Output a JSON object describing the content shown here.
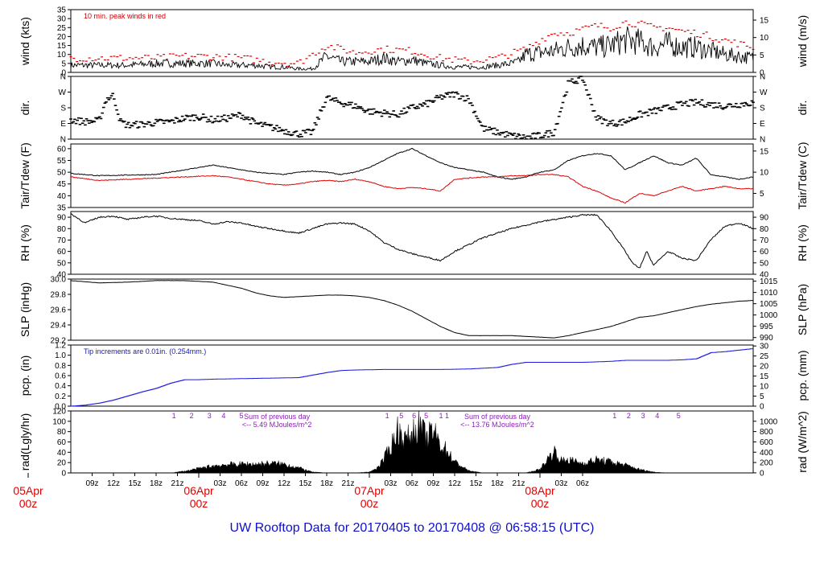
{
  "title": "UW Rooftop Data for 20170405  to  20170408 @ 06:58:15  (UTC)",
  "chart_data": [
    {
      "type": "line",
      "name": "wind",
      "ylabel_left": "wind (kts)",
      "ylabel_right": "wind (m/s)",
      "ylim": [
        0,
        35
      ],
      "yticks": [
        0,
        5,
        10,
        15,
        20,
        25,
        30,
        35
      ],
      "ylim_right": [
        0,
        18.0
      ],
      "yticks_right": [
        0,
        5,
        10,
        15
      ],
      "annotation": "10 min. peak winds in red",
      "series": [
        {
          "name": "wind speed",
          "color": "#000000",
          "x": [
            0,
            4,
            8,
            12,
            16,
            20,
            22,
            23,
            24,
            26,
            28,
            30,
            32,
            34,
            36,
            38,
            40,
            42,
            44,
            46,
            48,
            50,
            52,
            54,
            56,
            58,
            60,
            62,
            63,
            64,
            66,
            68,
            70,
            72,
            74,
            76,
            78,
            80,
            82,
            84,
            86,
            88,
            90,
            92,
            94,
            96
          ],
          "values": [
            4,
            4,
            4,
            5,
            5,
            5,
            4,
            4,
            4,
            4,
            3,
            3,
            2,
            2,
            9,
            6,
            6,
            6,
            8,
            6,
            7,
            5,
            4,
            3,
            3,
            3,
            4,
            5,
            6,
            10,
            11,
            12,
            14,
            15,
            14,
            15,
            18,
            17,
            14,
            16,
            14,
            14,
            12,
            10,
            9,
            8
          ]
        },
        {
          "name": "10 min peak",
          "color": "#e00000",
          "x": [
            0,
            4,
            8,
            12,
            16,
            20,
            24,
            28,
            32,
            36,
            40,
            44,
            48,
            52,
            56,
            60,
            64,
            66,
            68,
            70,
            72,
            74,
            76,
            78,
            80,
            82,
            84,
            86,
            88,
            90,
            92,
            94,
            96
          ],
          "values": [
            8,
            8,
            8,
            8,
            9,
            9,
            8,
            6,
            5,
            15,
            11,
            13,
            12,
            8,
            6,
            8,
            13,
            18,
            22,
            22,
            24,
            26,
            25,
            28,
            27,
            25,
            25,
            23,
            22,
            20,
            18,
            16,
            14
          ]
        }
      ]
    },
    {
      "type": "scatter",
      "name": "dir",
      "ylabel_left": "dir.",
      "ylabel_right": "dir.",
      "ylim": [
        0,
        360
      ],
      "tick_labels": [
        "N",
        "E",
        "S",
        "W",
        "N"
      ],
      "tick_values": [
        0,
        90,
        180,
        270,
        360
      ],
      "series": [
        {
          "name": "wind direction",
          "color": "#000000",
          "x": [
            0,
            2,
            4,
            5,
            6,
            7,
            8,
            10,
            12,
            14,
            16,
            18,
            20,
            22,
            24,
            26,
            28,
            30,
            32,
            34,
            36,
            37,
            38,
            40,
            42,
            44,
            46,
            48,
            50,
            52,
            54,
            56,
            58,
            60,
            62,
            64,
            66,
            68,
            70,
            72,
            74,
            76,
            78,
            80,
            82,
            84,
            86,
            88,
            90,
            92,
            94,
            96
          ],
          "values": [
            110,
            100,
            105,
            230,
            250,
            100,
            80,
            85,
            95,
            100,
            120,
            130,
            110,
            120,
            140,
            90,
            70,
            50,
            30,
            40,
            240,
            220,
            210,
            190,
            160,
            150,
            140,
            180,
            200,
            240,
            260,
            230,
            60,
            40,
            20,
            10,
            20,
            40,
            320,
            350,
            120,
            90,
            100,
            140,
            160,
            180,
            200,
            210,
            200,
            190,
            200,
            210
          ]
        }
      ]
    },
    {
      "type": "line",
      "name": "temperature",
      "ylabel_left": "Tair/Tdew (F)",
      "ylabel_right": "Tair/Tdew (C)",
      "ylim": [
        35,
        62
      ],
      "yticks": [
        35,
        40,
        45,
        50,
        55,
        60
      ],
      "yticks_right": [
        5,
        10,
        15
      ],
      "series": [
        {
          "name": "Tair",
          "color": "#000000",
          "x": [
            0,
            4,
            8,
            12,
            16,
            20,
            22,
            24,
            26,
            28,
            30,
            32,
            34,
            36,
            38,
            40,
            42,
            44,
            46,
            48,
            50,
            52,
            54,
            56,
            58,
            60,
            62,
            64,
            66,
            68,
            70,
            72,
            74,
            76,
            78,
            80,
            82,
            84,
            86,
            88,
            90,
            92,
            94,
            96
          ],
          "values": [
            49.5,
            48.5,
            48.8,
            49,
            51,
            53,
            52,
            51,
            50,
            49.5,
            49,
            50,
            50.5,
            50,
            49,
            50,
            52,
            55,
            58,
            60,
            57,
            54,
            52,
            51,
            50,
            48,
            47,
            48,
            50,
            51,
            55,
            57,
            58,
            57,
            51,
            54,
            57,
            54,
            53,
            56,
            49,
            48,
            47,
            48
          ]
        },
        {
          "name": "Tdew",
          "color": "#e00000",
          "x": [
            0,
            4,
            8,
            12,
            16,
            20,
            22,
            24,
            26,
            28,
            30,
            32,
            34,
            36,
            38,
            40,
            42,
            44,
            46,
            48,
            50,
            52,
            54,
            56,
            58,
            60,
            62,
            64,
            66,
            68,
            70,
            72,
            74,
            76,
            78,
            80,
            82,
            84,
            86,
            88,
            90,
            92,
            94,
            96
          ],
          "values": [
            48,
            46.5,
            47,
            47.5,
            48,
            48.5,
            48,
            47,
            46,
            45,
            44.5,
            45,
            46,
            46.5,
            46,
            47,
            46,
            44,
            43,
            43.5,
            43,
            42,
            47,
            47.5,
            48,
            48,
            48.5,
            48.5,
            49,
            49,
            48,
            44,
            42,
            39,
            37,
            41,
            40,
            42,
            44,
            42,
            43,
            44,
            43,
            43
          ]
        }
      ]
    },
    {
      "type": "line",
      "name": "rh",
      "ylabel_left": "RH (%)",
      "ylabel_right": "RH (%)",
      "ylim": [
        40,
        95
      ],
      "yticks": [
        40,
        50,
        60,
        70,
        80,
        90
      ],
      "series": [
        {
          "name": "RH",
          "color": "#000000",
          "x": [
            0,
            2,
            4,
            6,
            8,
            10,
            12,
            14,
            16,
            18,
            20,
            22,
            24,
            26,
            28,
            30,
            32,
            34,
            36,
            38,
            40,
            42,
            44,
            46,
            48,
            50,
            52,
            54,
            56,
            58,
            60,
            62,
            64,
            66,
            68,
            70,
            72,
            74,
            76,
            78,
            79,
            80,
            81,
            82,
            84,
            86,
            88,
            90,
            92,
            94,
            96
          ],
          "values": [
            93,
            85,
            90,
            91,
            88,
            90,
            91,
            89,
            88,
            87,
            84,
            86,
            85,
            82,
            80,
            78,
            76,
            80,
            84,
            85,
            84,
            78,
            68,
            62,
            58,
            55,
            52,
            60,
            66,
            72,
            76,
            80,
            83,
            86,
            88,
            90,
            92,
            92,
            78,
            60,
            50,
            45,
            60,
            48,
            60,
            54,
            52,
            70,
            82,
            85,
            80
          ]
        }
      ]
    },
    {
      "type": "line",
      "name": "slp",
      "ylabel_left": "SLP (inHg)",
      "ylabel_right": "SLP (hPa)",
      "ylim": [
        29.2,
        30.0
      ],
      "yticks": [
        29.2,
        29.4,
        29.6,
        29.8,
        30.0
      ],
      "ytick_labels": [
        "29.2",
        "29.4",
        "29.6",
        "29.8",
        "30.0"
      ],
      "yticks_right": [
        990,
        995,
        1000,
        1005,
        1010,
        1015
      ],
      "series": [
        {
          "name": "SLP",
          "color": "#000000",
          "x": [
            0,
            4,
            8,
            12,
            16,
            20,
            24,
            26,
            28,
            30,
            32,
            34,
            36,
            38,
            40,
            42,
            44,
            46,
            48,
            50,
            52,
            54,
            56,
            58,
            60,
            62,
            64,
            66,
            68,
            70,
            72,
            74,
            76,
            78,
            80,
            82,
            84,
            86,
            88,
            90,
            92,
            94,
            96
          ],
          "values": [
            29.98,
            29.95,
            29.96,
            29.98,
            29.98,
            29.96,
            29.88,
            29.82,
            29.78,
            29.76,
            29.77,
            29.78,
            29.79,
            29.79,
            29.78,
            29.76,
            29.72,
            29.66,
            29.58,
            29.48,
            29.38,
            29.3,
            29.26,
            29.26,
            29.26,
            29.26,
            29.25,
            29.24,
            29.23,
            29.26,
            29.3,
            29.34,
            29.38,
            29.44,
            29.5,
            29.52,
            29.56,
            29.6,
            29.64,
            29.67,
            29.69,
            29.71,
            29.72
          ]
        }
      ]
    },
    {
      "type": "area",
      "name": "precip",
      "ylabel_left": "pcp. (in)",
      "ylabel_right": "pcp. (mm)",
      "ylim": [
        0.0,
        1.2
      ],
      "yticks": [
        0.0,
        0.2,
        0.4,
        0.6,
        0.8,
        1.0,
        1.2
      ],
      "ytick_labels": [
        "0.0",
        "0.2",
        "0.4",
        "0.6",
        "0.8",
        "1.0",
        "1.2"
      ],
      "yticks_right": [
        0,
        5,
        10,
        15,
        20,
        25,
        30
      ],
      "annotation": "Tip increments are 0.01in. (0.254mm.)",
      "series": [
        {
          "name": "cumulative precip",
          "color": "#1a1ae0",
          "x": [
            0,
            2,
            4,
            6,
            8,
            10,
            12,
            14,
            16,
            18,
            20,
            24,
            28,
            32,
            36,
            38,
            40,
            44,
            48,
            52,
            56,
            60,
            62,
            64,
            66,
            68,
            70,
            72,
            74,
            76,
            78,
            80,
            82,
            84,
            86,
            88,
            90,
            92,
            94,
            96
          ],
          "values": [
            0.0,
            0.02,
            0.06,
            0.12,
            0.2,
            0.28,
            0.35,
            0.45,
            0.52,
            0.52,
            0.53,
            0.54,
            0.55,
            0.56,
            0.66,
            0.7,
            0.71,
            0.72,
            0.72,
            0.72,
            0.73,
            0.76,
            0.82,
            0.86,
            0.86,
            0.86,
            0.86,
            0.86,
            0.87,
            0.88,
            0.9,
            0.9,
            0.9,
            0.9,
            0.91,
            0.93,
            1.05,
            1.07,
            1.1,
            1.13
          ]
        }
      ]
    },
    {
      "type": "area",
      "name": "radiation",
      "ylabel_left": "rad(Lgly/hr)",
      "ylabel_right": "rad (W/m^2)",
      "ylim": [
        0,
        120
      ],
      "yticks": [
        0,
        20,
        40,
        60,
        80,
        100,
        120
      ],
      "yticks_right": [
        0,
        200,
        400,
        600,
        800,
        1000
      ],
      "series": [
        {
          "name": "solar radiation",
          "color": "#000000",
          "x": [
            0,
            14,
            16,
            18,
            20,
            22,
            24,
            26,
            28,
            30,
            32,
            34,
            36,
            38,
            40,
            42,
            43,
            44,
            45,
            46,
            47,
            48,
            49,
            50,
            51,
            52,
            53,
            54,
            56,
            58,
            60,
            62,
            64,
            66,
            67,
            68,
            69,
            70,
            72,
            74,
            76,
            78,
            80,
            82,
            84,
            86,
            96
          ],
          "values": [
            0,
            0,
            4,
            10,
            16,
            19,
            20,
            20,
            22,
            20,
            12,
            2,
            0,
            0,
            0,
            2,
            10,
            30,
            60,
            100,
            75,
            90,
            110,
            80,
            95,
            65,
            50,
            25,
            5,
            0,
            0,
            0,
            0,
            8,
            30,
            50,
            28,
            30,
            22,
            30,
            25,
            18,
            8,
            2,
            0,
            0,
            0
          ]
        }
      ],
      "markers": [
        "1",
        "2",
        "3",
        "4",
        "5",
        "1",
        "5",
        "6",
        "5",
        "1 1",
        "1",
        "2",
        "3",
        "4",
        "5"
      ],
      "notes": [
        {
          "line1": "Sum of previous day",
          "line2": "<-- 5.49 MJoules/m^2"
        },
        {
          "line1": "Sum of previous day",
          "line2": "<-- 13.76 MJoules/m^2"
        }
      ]
    }
  ],
  "x_axis": {
    "range_hours": [
      0,
      96
    ],
    "hour_ticks": [
      "09z",
      "12z",
      "15z",
      "18z",
      "21z",
      "03z",
      "06z",
      "09z",
      "12z",
      "15z",
      "18z",
      "21z",
      "03z",
      "06z",
      "09z",
      "12z",
      "15z",
      "18z",
      "21z",
      "03z",
      "06z"
    ],
    "hour_tick_values": [
      2,
      5,
      8,
      11,
      14,
      20,
      23,
      26,
      29,
      32,
      35,
      38,
      44,
      47,
      50,
      53,
      56,
      59,
      62,
      68,
      71
    ],
    "day_labels": [
      {
        "line1": "05Apr",
        "line2": "00z"
      },
      {
        "line1": "06Apr",
        "line2": "00z"
      },
      {
        "line1": "07Apr",
        "line2": "00z"
      },
      {
        "line1": "08Apr",
        "line2": "00z"
      }
    ]
  }
}
